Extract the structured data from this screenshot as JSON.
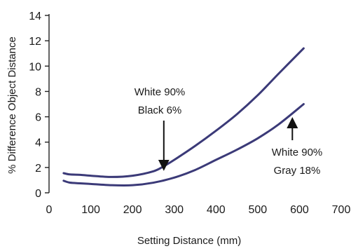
{
  "chart_data": {
    "type": "line",
    "xlabel": "Setting Distance (mm)",
    "ylabel": "% Difference Object Distance",
    "xlim": [
      0,
      700
    ],
    "ylim": [
      0,
      14
    ],
    "x_ticks": [
      0,
      100,
      200,
      300,
      400,
      500,
      600,
      700
    ],
    "y_ticks": [
      0,
      2,
      4,
      6,
      8,
      10,
      12,
      14
    ],
    "grid": false,
    "legend": "none",
    "line_color": "#3b3a78",
    "series": [
      {
        "label_lines": [
          "White 90%",
          "Black 6%"
        ],
        "x": [
          35,
          50,
          75,
          100,
          150,
          200,
          250,
          275,
          300,
          350,
          400,
          450,
          500,
          550,
          610
        ],
        "y": [
          1.55,
          1.45,
          1.42,
          1.35,
          1.25,
          1.35,
          1.7,
          2.1,
          2.6,
          3.7,
          4.9,
          6.2,
          7.7,
          9.4,
          11.4
        ]
      },
      {
        "label_lines": [
          "White 90%",
          "Gray 18%"
        ],
        "x": [
          35,
          50,
          75,
          100,
          150,
          200,
          250,
          300,
          350,
          400,
          450,
          500,
          550,
          610
        ],
        "y": [
          0.95,
          0.8,
          0.75,
          0.7,
          0.6,
          0.6,
          0.8,
          1.2,
          1.8,
          2.6,
          3.4,
          4.3,
          5.4,
          7.0
        ]
      }
    ],
    "annotations": [
      {
        "lines": [
          "White 90%",
          "Black 6%"
        ],
        "arrow_to": {
          "x": 275,
          "y": 1.95
        }
      },
      {
        "lines": [
          "White 90%",
          "Gray 18%"
        ],
        "arrow_to": {
          "x": 583,
          "y": 6.2
        }
      }
    ]
  }
}
